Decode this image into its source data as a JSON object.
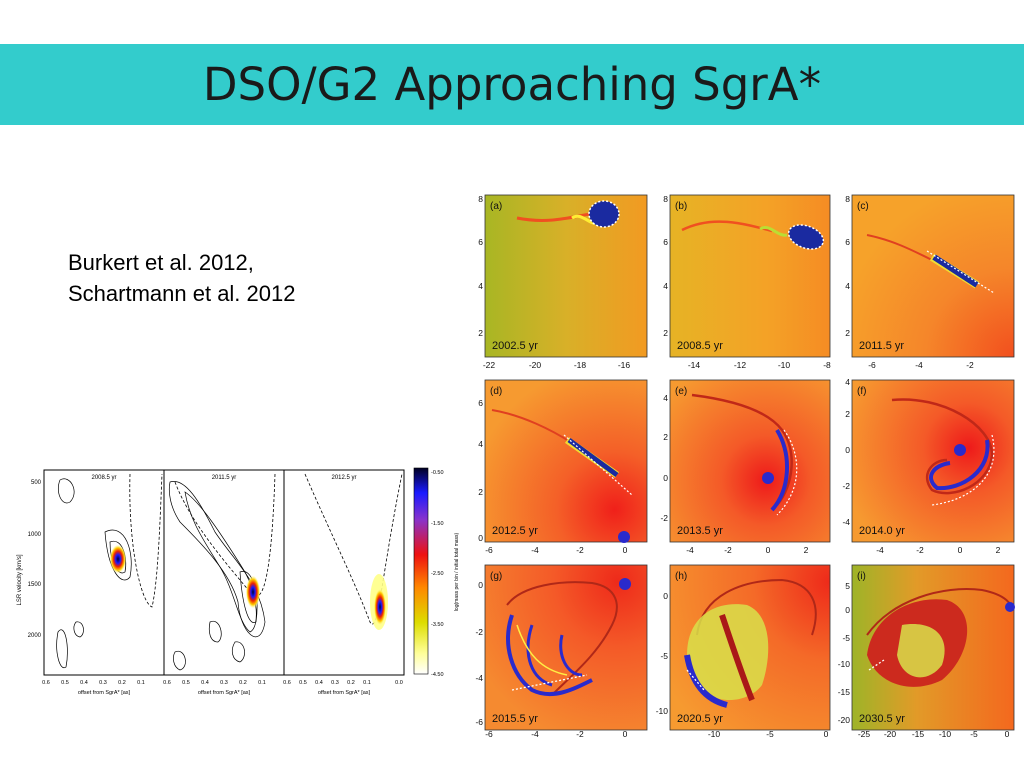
{
  "slide": {
    "title": "DSO/G2 Approaching SgrA*",
    "citation_lines": [
      "Burkert et al. 2012,",
      "Schartmann et al. 2012"
    ]
  },
  "pv_figure": {
    "panels": [
      {
        "label": "2008.5 yr",
        "color": "#cc66ff"
      },
      {
        "label": "2011.5 yr",
        "color": "#cc66ff"
      },
      {
        "label": "2012.5 yr",
        "color": "#cc66ff"
      }
    ],
    "y_axis_label": "LSR velocity [km/s]",
    "y_ticks": [
      "500",
      "1000",
      "1500",
      "2000"
    ],
    "x_axis_label": "offset from SgrA* [as]",
    "x_ticks": [
      "0.6",
      "0.5",
      "0.4",
      "0.3",
      "0.2",
      "0.1"
    ],
    "x_ticks_last": [
      "0.6",
      "0.5",
      "0.4",
      "0.3",
      "0.2",
      "0.1",
      "0.0"
    ],
    "colorbar_ticks": [
      "-0.50",
      "-1.50",
      "-2.50",
      "-3.50",
      "-4.50"
    ],
    "colorbar_label": "log(mass per bin / initial total mass)"
  },
  "sim_figure": {
    "panels": [
      {
        "letter": "(a)",
        "time": "2002.5 yr"
      },
      {
        "letter": "(b)",
        "time": "2008.5 yr"
      },
      {
        "letter": "(c)",
        "time": "2011.5 yr"
      },
      {
        "letter": "(d)",
        "time": "2012.5 yr"
      },
      {
        "letter": "(e)",
        "time": "2013.5 yr"
      },
      {
        "letter": "(f)",
        "time": "2014.0 yr"
      },
      {
        "letter": "(g)",
        "time": "2015.5 yr"
      },
      {
        "letter": "(h)",
        "time": "2020.5 yr"
      },
      {
        "letter": "(i)",
        "time": "2030.5 yr"
      }
    ],
    "y_ticks": [
      [
        "8",
        "6",
        "4",
        "2"
      ],
      [
        "8",
        "6",
        "4",
        "2"
      ],
      [
        "8",
        "6",
        "4",
        "2"
      ],
      [
        "6",
        "4",
        "2",
        "0"
      ],
      [
        "4",
        "2",
        "0",
        "-2"
      ],
      [
        "4",
        "2",
        "0",
        "-2",
        "-4"
      ],
      [
        "0",
        "-2",
        "-4",
        "-6"
      ],
      [
        "0",
        "-5",
        "-10"
      ],
      [
        "5",
        "0",
        "-5",
        "-10",
        "-15",
        "-20"
      ]
    ],
    "x_ticks": [
      [
        "-22",
        "-20",
        "-18",
        "-16"
      ],
      [
        "-14",
        "-12",
        "-10",
        "-8"
      ],
      [
        "-6",
        "-4",
        "-2"
      ],
      [
        "-6",
        "-4",
        "-2",
        "0"
      ],
      [
        "-4",
        "-2",
        "0",
        "2"
      ],
      [
        "-4",
        "-2",
        "0",
        "2"
      ],
      [
        "-6",
        "-4",
        "-2",
        "0"
      ],
      [
        "-10",
        "-5",
        "0"
      ],
      [
        "-25",
        "-20",
        "-15",
        "-10",
        "-5",
        "0"
      ]
    ]
  }
}
